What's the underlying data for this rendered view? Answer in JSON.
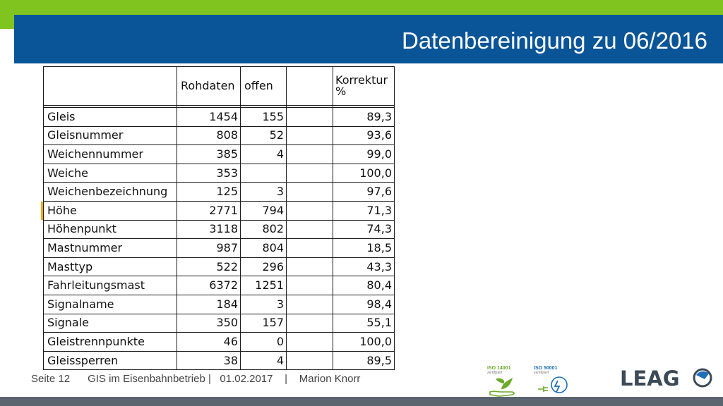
{
  "slide": {
    "title": "Datenbereinigung zu 06/2016"
  },
  "table": {
    "headers": {
      "name": "",
      "rohdaten": "Rohdaten",
      "offen": "offen",
      "gap": "",
      "korrektur_line1": "Korrektur",
      "korrektur_line2": "%"
    },
    "rows": [
      {
        "name": "Gleis",
        "rohdaten": "1454",
        "offen": "155",
        "korrektur": "89,3"
      },
      {
        "name": "Gleisnummer",
        "rohdaten": "808",
        "offen": "52",
        "korrektur": "93,6"
      },
      {
        "name": "Weichennummer",
        "rohdaten": "385",
        "offen": "4",
        "korrektur": "99,0"
      },
      {
        "name": "Weiche",
        "rohdaten": "353",
        "offen": "",
        "korrektur": "100,0"
      },
      {
        "name": "Weichenbezeichnung",
        "rohdaten": "125",
        "offen": "3",
        "korrektur": "97,6"
      },
      {
        "name": "Höhe",
        "rohdaten": "2771",
        "offen": "794",
        "korrektur": "71,3"
      },
      {
        "name": "Höhenpunkt",
        "rohdaten": "3118",
        "offen": "802",
        "korrektur": "74,3"
      },
      {
        "name": "Mastnummer",
        "rohdaten": "987",
        "offen": "804",
        "korrektur": "18,5"
      },
      {
        "name": "Masttyp",
        "rohdaten": "522",
        "offen": "296",
        "korrektur": "43,3"
      },
      {
        "name": "Fahrleitungsmast",
        "rohdaten": "6372",
        "offen": "1251",
        "korrektur": "80,4"
      },
      {
        "name": "Signalname",
        "rohdaten": "184",
        "offen": "3",
        "korrektur": "98,4"
      },
      {
        "name": "Signale",
        "rohdaten": "350",
        "offen": "157",
        "korrektur": "55,1"
      },
      {
        "name": "Gleistrennpunkte",
        "rohdaten": "46",
        "offen": "0",
        "korrektur": "100,0"
      },
      {
        "name": "Gleissperren",
        "rohdaten": "38",
        "offen": "4",
        "korrektur": "89,5"
      }
    ]
  },
  "footer": {
    "page": "Seite 12",
    "topic": "GIS im Eisenbahnbetrieb |",
    "date": "01.02.2017",
    "separator": "|",
    "author": "Marion Knorr"
  },
  "badges": {
    "iso1_label": "ISO 14001",
    "iso1_sub": "zertifiziert",
    "iso2_label": "ISO 50001",
    "iso2_sub": "zertifiziert"
  },
  "logo": {
    "text": "LEAG"
  },
  "colors": {
    "accent_green": "#7fc41f",
    "title_blue": "#0a5598",
    "footer_bar": "#5a6570",
    "logo_dark": "#3c4a57",
    "logo_blue": "#1e6fb8",
    "row_marker": "#f2a900"
  }
}
